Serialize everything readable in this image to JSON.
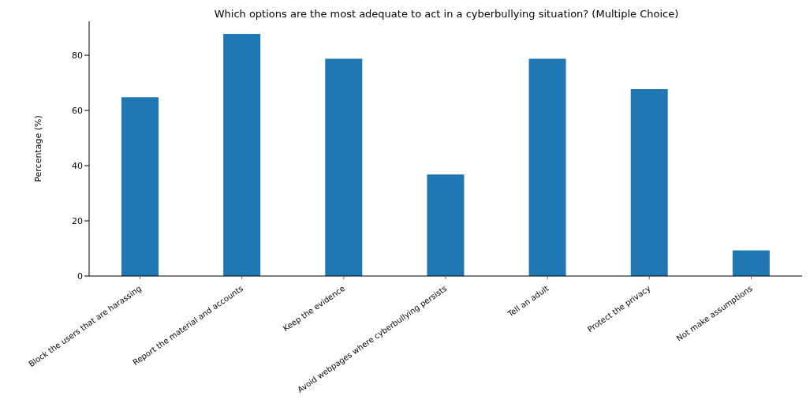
{
  "chart_data": {
    "type": "bar",
    "title": "Which options are the most adequate to act in a cyberbullying situation? (Multiple Choice)",
    "ylabel": "Percentage (%)",
    "categories": [
      "Block the users that are harassing",
      "Report the material and accounts",
      "Keep the evidence",
      "Avoid webpages where cyberbullying persists",
      "Tell an adult",
      "Protect the privacy",
      "Not make assumptions"
    ],
    "values": [
      64.8,
      87.7,
      78.7,
      36.8,
      78.7,
      67.7,
      9.3
    ],
    "color": "#1f77b4",
    "ylim": [
      0,
      92.3
    ],
    "yticks": [
      0,
      20,
      40,
      60,
      80
    ],
    "grid": false,
    "legend": false
  }
}
